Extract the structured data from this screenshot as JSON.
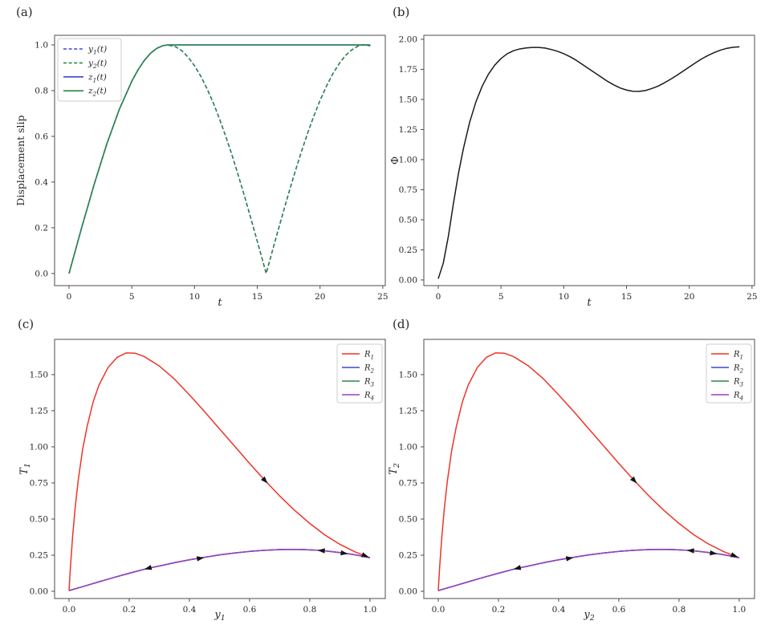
{
  "figure": {
    "background": "#ffffff",
    "text_color": "#262626",
    "spine_color": "#4d4d4d",
    "arrow_color": "#141414",
    "colors": {
      "blue": "#3c46d2",
      "green": "#2b8747",
      "red": "#ee3427",
      "purple": "#9c3fc4",
      "black_curve": "#1b1b1b"
    }
  },
  "chart_data": [
    {
      "id": "a",
      "tag": "(a)",
      "type": "line",
      "xlabel": "t",
      "ylabel": "Displacement slip",
      "xlim": [
        -1.15,
        25.2
      ],
      "ylim": [
        -0.053,
        1.042
      ],
      "grid": false,
      "xticks": {
        "values": [
          0,
          5,
          10,
          15,
          20,
          25
        ],
        "labels": [
          "0",
          "5",
          "10",
          "15",
          "20",
          "25"
        ]
      },
      "yticks": {
        "values": [
          0,
          0.2,
          0.4,
          0.6,
          0.8,
          1.0
        ],
        "labels": [
          "0.0",
          "0.2",
          "0.4",
          "0.6",
          "0.8",
          "1.0"
        ]
      },
      "legend": {
        "loc": "upper left",
        "entries": [
          {
            "label": "y₁(t)",
            "color": "#3c46d2",
            "dash": true
          },
          {
            "label": "y₂(t)",
            "color": "#2b8747",
            "dash": true
          },
          {
            "label": "z₁(t)",
            "color": "#3c46d2",
            "dash": false
          },
          {
            "label": "z₂(t)",
            "color": "#2b8747",
            "dash": false
          }
        ]
      },
      "series": [
        {
          "name": "y₁(t)",
          "color": "#3c46d2",
          "dash": true,
          "x": [
            0,
            1,
            2,
            3,
            4,
            5,
            5.5,
            6,
            6.5,
            7,
            7.5,
            7.854,
            8.5,
            9,
            9.5,
            10,
            10.5,
            11,
            11.5,
            12,
            12.5,
            13,
            13.5,
            14,
            14.5,
            15,
            15.4,
            15.708,
            16,
            16.5,
            17,
            17.5,
            18,
            18.5,
            19,
            19.5,
            20,
            20.5,
            21,
            21.5,
            22,
            22.5,
            23,
            23.3,
            23.562,
            24
          ],
          "y": [
            0,
            0.199,
            0.389,
            0.565,
            0.717,
            0.841,
            0.891,
            0.932,
            0.964,
            0.985,
            0.997,
            1,
            0.992,
            0.974,
            0.946,
            0.909,
            0.863,
            0.808,
            0.746,
            0.675,
            0.598,
            0.516,
            0.427,
            0.335,
            0.239,
            0.141,
            0.062,
            0,
            0.058,
            0.158,
            0.255,
            0.351,
            0.443,
            0.53,
            0.612,
            0.688,
            0.757,
            0.818,
            0.872,
            0.916,
            0.952,
            0.977,
            0.994,
            0.999,
            1,
            0.996
          ]
        },
        {
          "name": "y₂(t)",
          "color": "#2b8747",
          "dash": true,
          "same_as": 0
        },
        {
          "name": "z₁(t)",
          "color": "#3c46d2",
          "dash": false,
          "x": [
            0,
            1,
            2,
            3,
            4,
            5,
            5.5,
            6,
            6.5,
            7,
            7.5,
            7.854,
            24
          ],
          "y": [
            0,
            0.199,
            0.389,
            0.565,
            0.717,
            0.841,
            0.891,
            0.932,
            0.964,
            0.985,
            0.997,
            1,
            1
          ]
        },
        {
          "name": "z₂(t)",
          "color": "#2b8747",
          "dash": false,
          "same_as": 2
        }
      ],
      "arrows": []
    },
    {
      "id": "b",
      "tag": "(b)",
      "type": "line",
      "xlabel": "t",
      "ylabel": "Φ",
      "xlim": [
        -1.15,
        25.2
      ],
      "ylim": [
        -0.047,
        2.033
      ],
      "grid": false,
      "xticks": {
        "values": [
          0,
          5,
          10,
          15,
          20,
          25
        ],
        "labels": [
          "0",
          "5",
          "10",
          "15",
          "20",
          "25"
        ]
      },
      "yticks": {
        "values": [
          0,
          0.25,
          0.5,
          0.75,
          1.0,
          1.25,
          1.5,
          1.75,
          2.0
        ],
        "labels": [
          "0.00",
          "0.25",
          "0.50",
          "0.75",
          "1.00",
          "1.25",
          "1.50",
          "1.75",
          "2.00"
        ]
      },
      "legend": null,
      "series": [
        {
          "name": "Φ(t)",
          "color": "#1b1b1b",
          "dash": false,
          "x": [
            0,
            0.4,
            0.8,
            1.2,
            1.6,
            2,
            2.5,
            3,
            3.5,
            4,
            4.5,
            5,
            5.5,
            6,
            6.5,
            7,
            7.5,
            8,
            8.5,
            9,
            9.5,
            10,
            10.5,
            11,
            11.5,
            12,
            12.5,
            13,
            13.5,
            14,
            14.5,
            15,
            15.5,
            16,
            16.5,
            17,
            17.5,
            18,
            18.5,
            19,
            19.5,
            20,
            20.5,
            21,
            21.5,
            22,
            22.5,
            23,
            23.5,
            24
          ],
          "y": [
            0.01,
            0.14,
            0.36,
            0.63,
            0.88,
            1.09,
            1.31,
            1.48,
            1.61,
            1.71,
            1.785,
            1.84,
            1.88,
            1.905,
            1.92,
            1.928,
            1.932,
            1.932,
            1.927,
            1.915,
            1.9,
            1.88,
            1.855,
            1.825,
            1.79,
            1.755,
            1.72,
            1.685,
            1.65,
            1.62,
            1.595,
            1.578,
            1.568,
            1.567,
            1.574,
            1.59,
            1.61,
            1.637,
            1.667,
            1.7,
            1.735,
            1.77,
            1.805,
            1.838,
            1.866,
            1.89,
            1.91,
            1.925,
            1.934,
            1.937
          ]
        }
      ],
      "arrows": []
    },
    {
      "id": "c",
      "tag": "(c)",
      "type": "line",
      "xlabel": "y₁",
      "ylabel": "𝒯₁",
      "xlim": [
        -0.048,
        1.051
      ],
      "ylim": [
        -0.05,
        1.744
      ],
      "grid": false,
      "xticks": {
        "values": [
          0,
          0.2,
          0.4,
          0.6,
          0.8,
          1.0
        ],
        "labels": [
          "0.0",
          "0.2",
          "0.4",
          "0.6",
          "0.8",
          "1.0"
        ]
      },
      "yticks": {
        "values": [
          0,
          0.25,
          0.5,
          0.75,
          1.0,
          1.25,
          1.5
        ],
        "labels": [
          "0.00",
          "0.25",
          "0.50",
          "0.75",
          "1.00",
          "1.25",
          "1.50"
        ]
      },
      "legend": {
        "loc": "upper right",
        "entries": [
          {
            "label": "R₁",
            "color": "#ee3427",
            "dash": false
          },
          {
            "label": "R₂",
            "color": "#3c46d2",
            "dash": false
          },
          {
            "label": "R₃",
            "color": "#2b8747",
            "dash": false
          },
          {
            "label": "R₄",
            "color": "#9c3fc4",
            "dash": false
          }
        ]
      },
      "series": [
        {
          "name": "R₁",
          "color": "#ee3427",
          "dash": false,
          "x": [
            0,
            0.005,
            0.012,
            0.02,
            0.03,
            0.045,
            0.06,
            0.08,
            0.1,
            0.13,
            0.16,
            0.19,
            0.22,
            0.25,
            0.3,
            0.35,
            0.4,
            0.45,
            0.5,
            0.55,
            0.6,
            0.65,
            0.7,
            0.75,
            0.8,
            0.85,
            0.9,
            0.95,
            1.0
          ],
          "y": [
            0.005,
            0.18,
            0.38,
            0.57,
            0.76,
            0.98,
            1.14,
            1.31,
            1.43,
            1.55,
            1.62,
            1.65,
            1.648,
            1.625,
            1.56,
            1.47,
            1.36,
            1.245,
            1.125,
            1.005,
            0.885,
            0.77,
            0.66,
            0.56,
            0.47,
            0.39,
            0.325,
            0.273,
            0.232
          ]
        },
        {
          "name": "R₂",
          "color": "#3c46d2",
          "dash": false,
          "same_as": 3
        },
        {
          "name": "R₃",
          "color": "#2b8747",
          "dash": false,
          "same_as": 3
        },
        {
          "name": "R₄",
          "color": "#9c3fc4",
          "dash": false,
          "x": [
            0,
            0.05,
            0.1,
            0.15,
            0.2,
            0.26,
            0.3,
            0.35,
            0.4,
            0.44,
            0.5,
            0.55,
            0.6,
            0.65,
            0.7,
            0.74,
            0.78,
            0.82,
            0.86,
            0.9,
            0.94,
            0.97,
            1.0
          ],
          "y": [
            0.005,
            0.035,
            0.066,
            0.096,
            0.125,
            0.158,
            0.175,
            0.198,
            0.218,
            0.232,
            0.252,
            0.265,
            0.276,
            0.284,
            0.289,
            0.29,
            0.289,
            0.285,
            0.278,
            0.268,
            0.256,
            0.245,
            0.232
          ]
        }
      ],
      "arrows": [
        {
          "on": "R₁",
          "x": 0.652,
          "y": 0.765,
          "dx": 1,
          "dy": -2.3
        },
        {
          "on": "R₁",
          "x": 0.985,
          "y": 0.245,
          "dx": 1,
          "dy": -0.75
        },
        {
          "on": "R₄",
          "x": 0.262,
          "y": 0.159,
          "dx": -1,
          "dy": -0.52
        },
        {
          "on": "R₄",
          "x": 0.437,
          "y": 0.229,
          "dx": 1,
          "dy": 0.33
        },
        {
          "on": "R₄",
          "x": 0.838,
          "y": 0.282,
          "dx": -1,
          "dy": 0.15
        },
        {
          "on": "R₄",
          "x": 0.915,
          "y": 0.263,
          "dx": 1,
          "dy": -0.27
        }
      ]
    },
    {
      "id": "d",
      "tag": "(d)",
      "type": "line",
      "xlabel": "y₂",
      "ylabel": "𝒯₂",
      "xlim": [
        -0.048,
        1.051
      ],
      "ylim": [
        -0.05,
        1.744
      ],
      "grid": false,
      "xticks": {
        "values": [
          0,
          0.2,
          0.4,
          0.6,
          0.8,
          1.0
        ],
        "labels": [
          "0.0",
          "0.2",
          "0.4",
          "0.6",
          "0.8",
          "1.0"
        ]
      },
      "yticks": {
        "values": [
          0,
          0.25,
          0.5,
          0.75,
          1.0,
          1.25,
          1.5
        ],
        "labels": [
          "0.00",
          "0.25",
          "0.50",
          "0.75",
          "1.00",
          "1.25",
          "1.50"
        ]
      },
      "legend": {
        "loc": "upper right",
        "entries": [
          {
            "label": "R₁",
            "color": "#ee3427",
            "dash": false
          },
          {
            "label": "R₂",
            "color": "#3c46d2",
            "dash": false
          },
          {
            "label": "R₃",
            "color": "#2b8747",
            "dash": false
          },
          {
            "label": "R₄",
            "color": "#9c3fc4",
            "dash": false
          }
        ]
      },
      "series_same_as_panel": 2,
      "arrows_same_as_panel": 2
    }
  ]
}
